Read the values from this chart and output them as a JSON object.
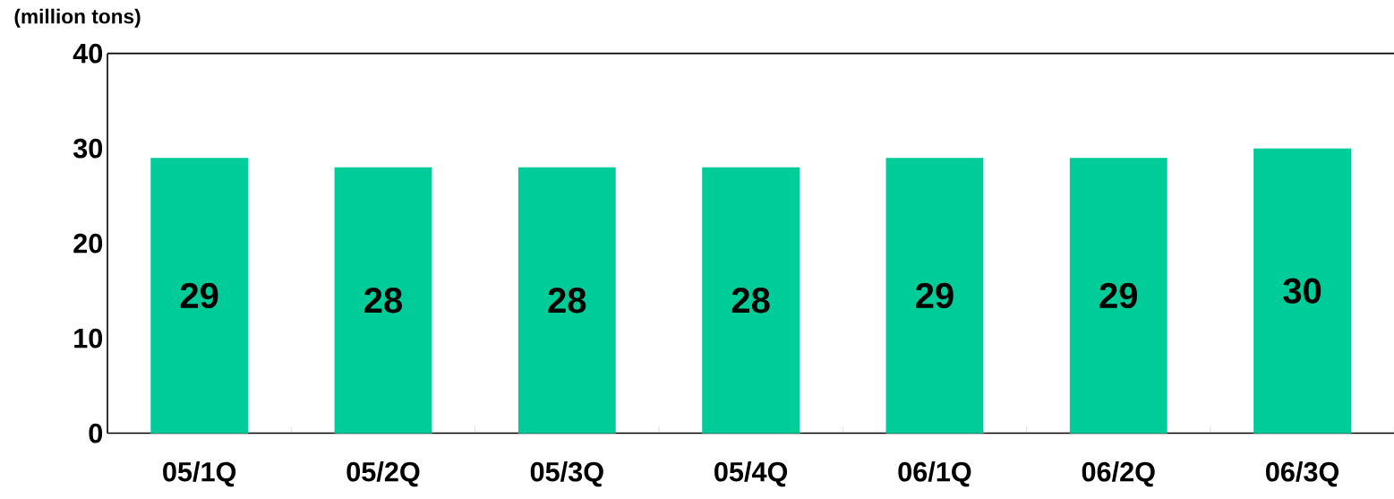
{
  "chart_data": {
    "type": "bar",
    "ylabel": "(million tons)",
    "categories": [
      "05/1Q",
      "05/2Q",
      "05/3Q",
      "05/4Q",
      "06/1Q",
      "06/2Q",
      "06/3Q"
    ],
    "values": [
      29,
      28,
      28,
      28,
      29,
      29,
      30
    ],
    "color": "#00cc99",
    "ylim": [
      0,
      40
    ],
    "yticks": [
      0,
      10,
      20,
      30,
      40
    ],
    "grid": false,
    "data_labels": true
  }
}
